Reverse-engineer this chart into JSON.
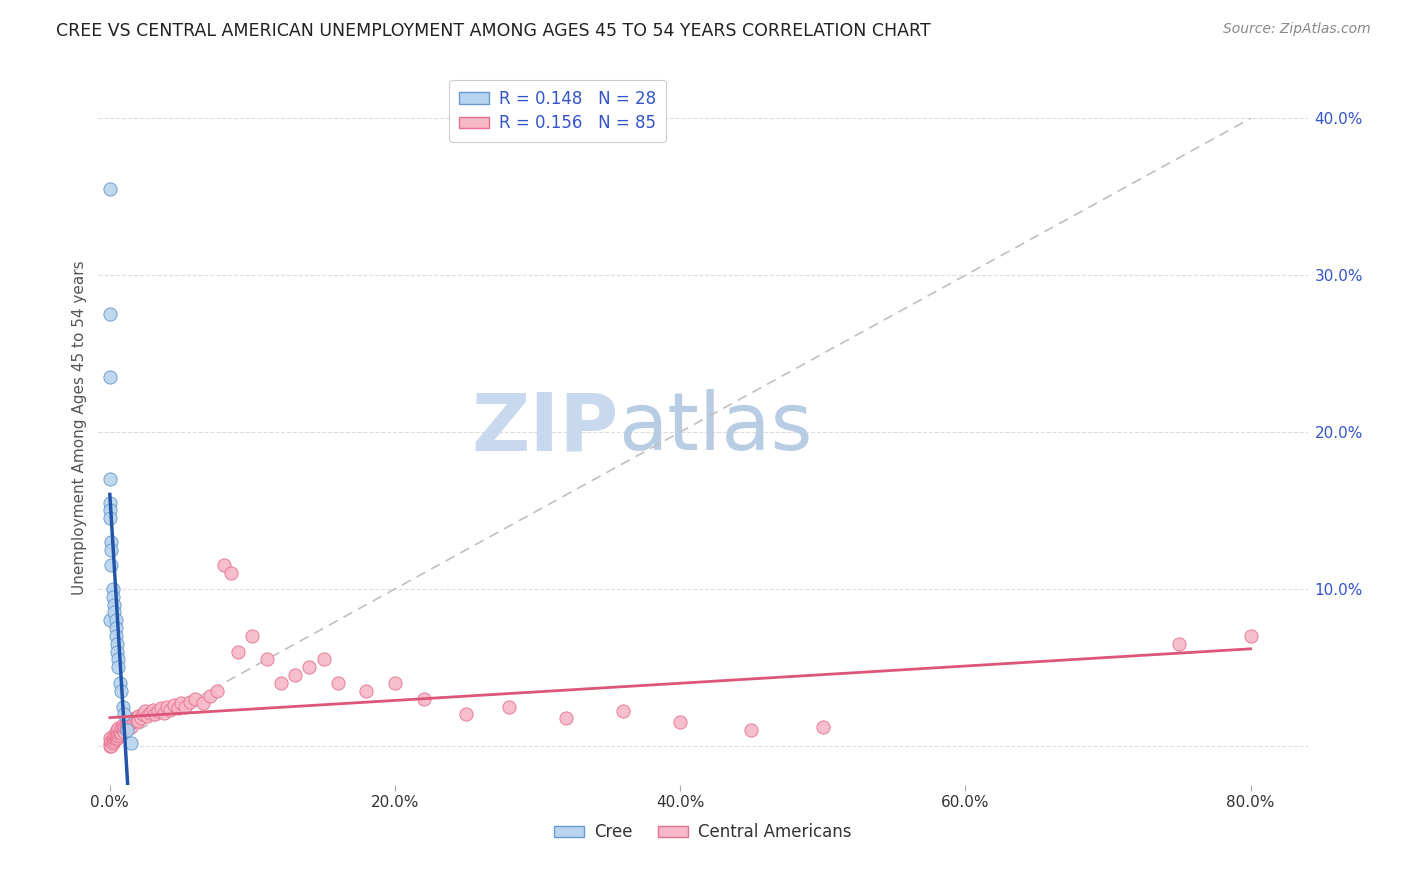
{
  "title": "CREE VS CENTRAL AMERICAN UNEMPLOYMENT AMONG AGES 45 TO 54 YEARS CORRELATION CHART",
  "source": "Source: ZipAtlas.com",
  "ylabel": "Unemployment Among Ages 45 to 54 years",
  "xlabel_ticks": [
    "0.0%",
    "20.0%",
    "40.0%",
    "60.0%",
    "80.0%"
  ],
  "xlabel_vals": [
    0.0,
    0.2,
    0.4,
    0.6,
    0.8
  ],
  "ylabel_right_ticks": [
    "10.0%",
    "20.0%",
    "30.0%",
    "40.0%"
  ],
  "ylabel_right_vals": [
    0.1,
    0.2,
    0.3,
    0.4
  ],
  "ylim": [
    -0.025,
    0.43
  ],
  "xlim": [
    -0.008,
    0.84
  ],
  "cree_R": 0.148,
  "cree_N": 28,
  "central_R": 0.156,
  "central_N": 85,
  "cree_color": "#b8d4ee",
  "central_color": "#f7b8c8",
  "cree_edge_color": "#6699cc",
  "central_edge_color": "#e87090",
  "cree_line_color": "#2255aa",
  "central_line_color": "#dd5577",
  "ref_line_color": "#c0c0c0",
  "legend_text_color": "#3355cc",
  "background_color": "#ffffff",
  "watermark_zip_color": "#c8d8ee",
  "watermark_atlas_color": "#b8cce4",
  "cree_x": [
    0.0,
    0.0,
    0.0,
    0.0,
    0.0,
    0.0,
    0.0,
    0.0,
    0.001,
    0.001,
    0.001,
    0.002,
    0.002,
    0.003,
    0.003,
    0.004,
    0.004,
    0.004,
    0.005,
    0.005,
    0.006,
    0.006,
    0.007,
    0.008,
    0.009,
    0.01,
    0.012,
    0.015
  ],
  "cree_y": [
    0.355,
    0.275,
    0.235,
    0.17,
    0.155,
    0.15,
    0.145,
    0.08,
    0.13,
    0.125,
    0.115,
    0.1,
    0.095,
    0.09,
    0.085,
    0.08,
    0.075,
    0.07,
    0.065,
    0.06,
    0.055,
    0.05,
    0.04,
    0.035,
    0.025,
    0.02,
    0.01,
    0.002
  ],
  "central_x": [
    0.0,
    0.0,
    0.0,
    0.001,
    0.001,
    0.002,
    0.002,
    0.003,
    0.003,
    0.003,
    0.004,
    0.004,
    0.004,
    0.005,
    0.005,
    0.005,
    0.006,
    0.006,
    0.006,
    0.007,
    0.007,
    0.008,
    0.008,
    0.009,
    0.009,
    0.01,
    0.01,
    0.011,
    0.011,
    0.012,
    0.012,
    0.013,
    0.013,
    0.014,
    0.015,
    0.015,
    0.016,
    0.017,
    0.018,
    0.019,
    0.02,
    0.02,
    0.022,
    0.023,
    0.025,
    0.026,
    0.028,
    0.03,
    0.032,
    0.034,
    0.036,
    0.038,
    0.04,
    0.042,
    0.045,
    0.048,
    0.05,
    0.053,
    0.056,
    0.06,
    0.065,
    0.07,
    0.075,
    0.08,
    0.085,
    0.09,
    0.1,
    0.11,
    0.12,
    0.13,
    0.14,
    0.15,
    0.16,
    0.18,
    0.2,
    0.22,
    0.25,
    0.28,
    0.32,
    0.36,
    0.4,
    0.45,
    0.5,
    0.75,
    0.8
  ],
  "central_y": [
    0.005,
    0.002,
    0.0,
    0.0,
    0.003,
    0.002,
    0.004,
    0.003,
    0.005,
    0.007,
    0.004,
    0.006,
    0.009,
    0.005,
    0.007,
    0.01,
    0.006,
    0.008,
    0.011,
    0.007,
    0.009,
    0.008,
    0.011,
    0.01,
    0.013,
    0.009,
    0.012,
    0.011,
    0.014,
    0.013,
    0.016,
    0.012,
    0.015,
    0.014,
    0.012,
    0.015,
    0.017,
    0.016,
    0.018,
    0.017,
    0.019,
    0.016,
    0.018,
    0.02,
    0.022,
    0.019,
    0.021,
    0.023,
    0.02,
    0.022,
    0.024,
    0.021,
    0.025,
    0.023,
    0.026,
    0.024,
    0.027,
    0.025,
    0.028,
    0.03,
    0.027,
    0.032,
    0.035,
    0.115,
    0.11,
    0.06,
    0.07,
    0.055,
    0.04,
    0.045,
    0.05,
    0.055,
    0.04,
    0.035,
    0.04,
    0.03,
    0.02,
    0.025,
    0.018,
    0.022,
    0.015,
    0.01,
    0.012,
    0.065,
    0.07
  ]
}
